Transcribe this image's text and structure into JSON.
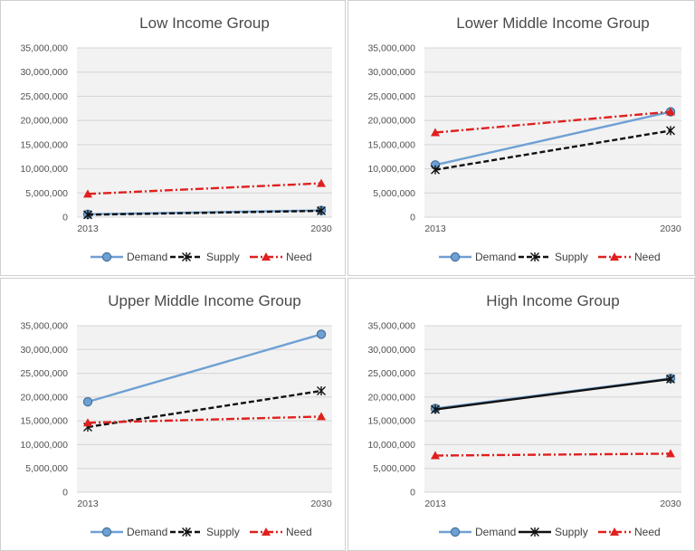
{
  "chart_data": [
    {
      "type": "line",
      "title": "Low Income Group",
      "categories": [
        "2013",
        "2030"
      ],
      "ylim": [
        0,
        35000000
      ],
      "yticks": [
        "0",
        "5,000,000",
        "10,000,000",
        "15,000,000",
        "20,000,000",
        "25,000,000",
        "30,000,000",
        "35,000,000"
      ],
      "grid": true,
      "legend": "bottom",
      "series": [
        {
          "name": "Demand",
          "values": [
            600000,
            1400000
          ],
          "color": "#6fa0d4",
          "marker": "circle",
          "dash": "solid"
        },
        {
          "name": "Supply",
          "values": [
            500000,
            1300000
          ],
          "color": "#111111",
          "marker": "asterisk",
          "dash": "dash"
        },
        {
          "name": "Need",
          "values": [
            4800000,
            7000000
          ],
          "color": "#e0201e",
          "marker": "triangle",
          "dash": "dashdot"
        }
      ]
    },
    {
      "type": "line",
      "title": "Lower Middle Income Group",
      "categories": [
        "2013",
        "2030"
      ],
      "ylim": [
        0,
        35000000
      ],
      "yticks": [
        "0",
        "5,000,000",
        "10,000,000",
        "15,000,000",
        "20,000,000",
        "25,000,000",
        "30,000,000",
        "35,000,000"
      ],
      "grid": true,
      "legend": "bottom",
      "series": [
        {
          "name": "Demand",
          "values": [
            10800000,
            21800000
          ],
          "color": "#6fa0d4",
          "marker": "circle",
          "dash": "solid"
        },
        {
          "name": "Supply",
          "values": [
            9800000,
            17900000
          ],
          "color": "#111111",
          "marker": "asterisk",
          "dash": "dash"
        },
        {
          "name": "Need",
          "values": [
            17500000,
            21800000
          ],
          "color": "#e0201e",
          "marker": "triangle",
          "dash": "dashdot"
        }
      ]
    },
    {
      "type": "line",
      "title": "Upper Middle Income Group",
      "categories": [
        "2013",
        "2030"
      ],
      "ylim": [
        0,
        35000000
      ],
      "yticks": [
        "0",
        "5,000,000",
        "10,000,000",
        "15,000,000",
        "20,000,000",
        "25,000,000",
        "30,000,000",
        "35,000,000"
      ],
      "grid": true,
      "legend": "bottom",
      "series": [
        {
          "name": "Demand",
          "values": [
            19000000,
            33200000
          ],
          "color": "#6fa0d4",
          "marker": "circle",
          "dash": "solid"
        },
        {
          "name": "Supply",
          "values": [
            13700000,
            21300000
          ],
          "color": "#111111",
          "marker": "asterisk",
          "dash": "dash"
        },
        {
          "name": "Need",
          "values": [
            14600000,
            15900000
          ],
          "color": "#e0201e",
          "marker": "triangle",
          "dash": "dashdot"
        }
      ]
    },
    {
      "type": "line",
      "title": "High Income Group",
      "categories": [
        "2013",
        "2030"
      ],
      "ylim": [
        0,
        35000000
      ],
      "yticks": [
        "0",
        "5,000,000",
        "10,000,000",
        "15,000,000",
        "20,000,000",
        "25,000,000",
        "30,000,000",
        "35,000,000"
      ],
      "grid": true,
      "legend": "bottom",
      "series": [
        {
          "name": "Demand",
          "values": [
            17600000,
            23900000
          ],
          "color": "#6fa0d4",
          "marker": "circle",
          "dash": "solid"
        },
        {
          "name": "Supply",
          "values": [
            17400000,
            23800000
          ],
          "color": "#111111",
          "marker": "asterisk",
          "dash": "solid"
        },
        {
          "name": "Need",
          "values": [
            7700000,
            8100000
          ],
          "color": "#e0201e",
          "marker": "triangle",
          "dash": "dashdot"
        }
      ]
    }
  ]
}
